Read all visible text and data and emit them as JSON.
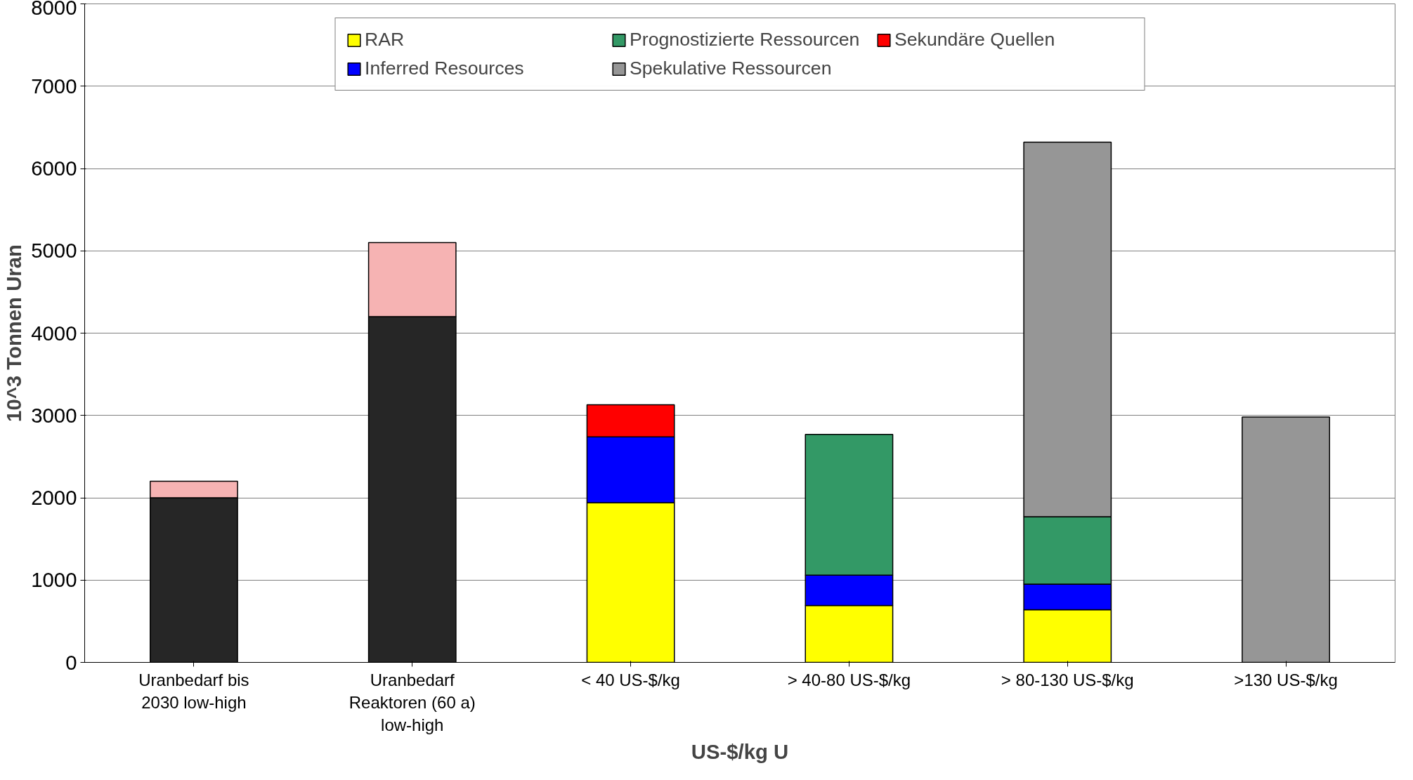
{
  "chart_data": {
    "type": "bar",
    "stacked": true,
    "xlabel": "US-$/kg U",
    "ylabel": "10^3 Tonnen Uran",
    "categories": [
      "Uranbedarf bis 2030 low-high",
      "Uranbedarf Reaktoren (60 a) low-high",
      "< 40 US-$/kg",
      "> 40-80 US-$/kg",
      "> 80-130 US-$/kg",
      ">130 US-$/kg"
    ],
    "series": [
      {
        "color": "#262626",
        "values": [
          2000,
          4200,
          null,
          null,
          null,
          null
        ]
      },
      {
        "name": "RAR",
        "color": "#ffff00",
        "values": [
          null,
          null,
          1940,
          690,
          640,
          null
        ]
      },
      {
        "name": "Inferred Resources",
        "color": "#0000ff",
        "values": [
          null,
          null,
          800,
          370,
          310,
          null
        ]
      },
      {
        "name": "Prognostizierte Ressourcen",
        "color": "#339966",
        "values": [
          null,
          null,
          null,
          1710,
          820,
          null
        ]
      },
      {
        "name": "Spekulative Ressourcen",
        "color": "#969696",
        "values": [
          null,
          null,
          null,
          null,
          4550,
          2980
        ]
      },
      {
        "name": "Sekundäre Quellen",
        "color": "#ff0000",
        "values": [
          null,
          null,
          390,
          null,
          null,
          null
        ]
      },
      {
        "color": "#f6b3b3",
        "values": [
          200,
          900,
          null,
          null,
          null,
          null
        ]
      }
    ],
    "ylim": [
      0,
      8000
    ],
    "yticks": [
      0,
      1000,
      2000,
      3000,
      4000,
      5000,
      6000,
      7000,
      8000
    ],
    "grid": "y",
    "legend": "top"
  }
}
